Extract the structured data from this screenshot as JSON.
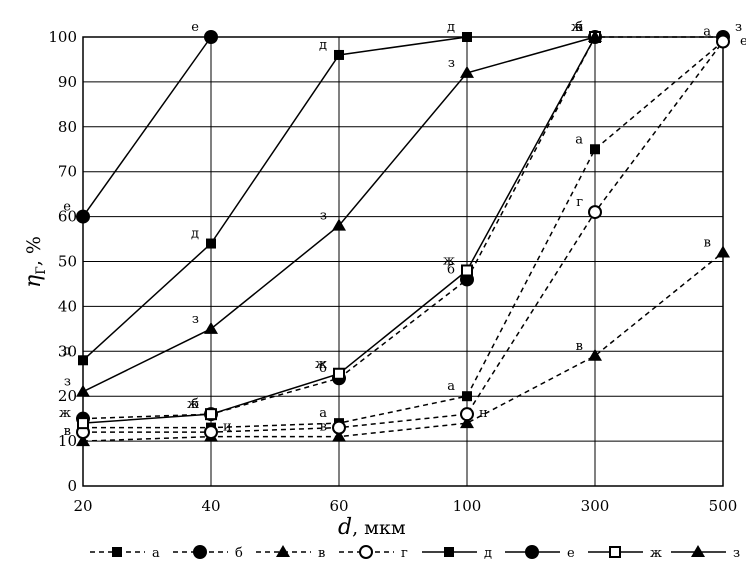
{
  "chart_data": {
    "type": "line",
    "xlabel_var": "d",
    "xlabel_unit": ", мкм",
    "ylabel_var": "η",
    "ylabel_sub": "Г",
    "ylabel_unit": ", %",
    "categories": [
      "20",
      "40",
      "60",
      "100",
      "300",
      "500"
    ],
    "yticks": [
      "0",
      "10",
      "20",
      "30",
      "40",
      "50",
      "60",
      "70",
      "80",
      "90",
      "100"
    ],
    "ylim": [
      0,
      100
    ],
    "grid": true,
    "legend_position": "bottom",
    "series": [
      {
        "name": "а",
        "dashed": true,
        "marker": "square",
        "values": [
          13,
          13,
          14,
          20,
          75,
          99
        ],
        "point_labels": [
          null,
          null,
          "а",
          "а",
          "а",
          "а"
        ]
      },
      {
        "name": "б",
        "dashed": true,
        "marker": "circle",
        "values": [
          15,
          16,
          24,
          46,
          100,
          100
        ],
        "point_labels": [
          null,
          "б",
          "б",
          "б",
          "б",
          null
        ]
      },
      {
        "name": "в",
        "dashed": true,
        "marker": "triangle",
        "values": [
          10,
          11,
          11,
          14,
          29,
          52
        ],
        "point_labels": [
          "в",
          null,
          "в",
          null,
          "в",
          "в"
        ]
      },
      {
        "name": "г",
        "dashed": true,
        "marker": "circle-open",
        "values": [
          12,
          12,
          13,
          16,
          61,
          99
        ],
        "point_labels": [
          null,
          null,
          null,
          null,
          "г",
          null
        ]
      },
      {
        "name": "д",
        "dashed": false,
        "marker": "square",
        "values": [
          28,
          54,
          96,
          100,
          null,
          null
        ],
        "point_labels": [
          "д",
          "д",
          "д",
          "д",
          null,
          null
        ]
      },
      {
        "name": "е",
        "dashed": false,
        "marker": "circle",
        "values": [
          60,
          100,
          null,
          null,
          null,
          null
        ],
        "point_labels": [
          "е",
          "е",
          null,
          null,
          null,
          null
        ]
      },
      {
        "name": "ж",
        "dashed": false,
        "marker": "square-open",
        "values": [
          14,
          16,
          25,
          48,
          100,
          null
        ],
        "point_labels": [
          "ж",
          "ж",
          "ж",
          "ж",
          "ж",
          null
        ]
      },
      {
        "name": "з",
        "dashed": false,
        "marker": "triangle",
        "values": [
          21,
          35,
          58,
          92,
          100,
          null
        ],
        "point_labels": [
          "з",
          "з",
          "з",
          "з",
          "з",
          null
        ]
      }
    ],
    "extra_labels": [
      {
        "text": "и",
        "x_index": 1,
        "value": 11
      },
      {
        "text": "н",
        "x_index": 3,
        "value": 14
      },
      {
        "text": "з",
        "x_index": 5,
        "value": 100
      },
      {
        "text": "е",
        "x_index": 5,
        "value": 100
      }
    ]
  }
}
